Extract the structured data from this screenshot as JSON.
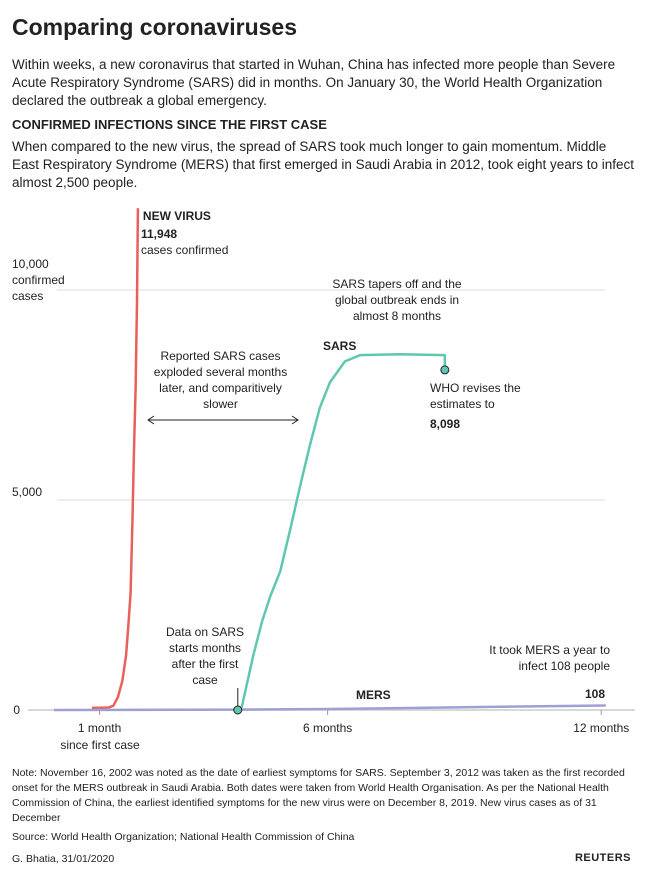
{
  "chart_data": {
    "type": "line",
    "title": "Comparing coronaviruses",
    "subtitle": "Within weeks, a new coronavirus that started in Wuhan, China has infected more people than Severe Acute Respiratory Syndrome (SARS) did in months. On January 30, the World Health Organization declared the outbreak a global emergency.",
    "chart_title": "CONFIRMED INFECTIONS SINCE THE FIRST CASE",
    "description": "When compared to the new virus, the spread of SARS took much longer to gain momentum. Middle East Respiratory Syndrome (MERS) that first emerged in Saudi Arabia in 2012, took eight years to infect almost 2,500 people.",
    "ylabel": "confirmed cases",
    "xlim": [
      0,
      12.74
    ],
    "ylim": [
      0,
      12000
    ],
    "xticks": [
      {
        "value": 1,
        "label": "1 month"
      },
      {
        "value": 6,
        "label": "6 months"
      },
      {
        "value": 12,
        "label": "12 months"
      }
    ],
    "yticks": [
      0,
      {
        "value": 5000,
        "label": "5,000"
      },
      {
        "value": 10000,
        "label": "10,000"
      }
    ],
    "grid": true,
    "series": [
      {
        "name": "NEW VIRUS",
        "color": "#e8605a",
        "x": [
          0.83,
          1.0,
          1.2,
          1.3,
          1.4,
          1.5,
          1.58,
          1.63,
          1.68,
          1.72,
          1.75,
          1.79,
          1.82,
          1.84
        ],
        "values": [
          50,
          55,
          60,
          100,
          300,
          700,
          1300,
          2000,
          2800,
          4500,
          6000,
          7700,
          9700,
          11948
        ]
      },
      {
        "name": "SARS",
        "color": "#5fc7b0",
        "x": [
          4.03,
          4.12,
          4.37,
          4.56,
          4.74,
          4.96,
          5.18,
          5.39,
          5.61,
          5.83,
          6.05,
          6.38,
          6.71,
          7.59,
          8.57,
          8.57
        ],
        "values": [
          0,
          80,
          1300,
          2100,
          2700,
          3300,
          4300,
          5300,
          6300,
          7200,
          7800,
          8300,
          8450,
          8470,
          8450,
          8098
        ]
      },
      {
        "name": "MERS",
        "color": "#9f9fd6",
        "x": [
          0,
          4,
          6,
          8,
          10,
          12.1
        ],
        "values": [
          0,
          10,
          25,
          50,
          80,
          108
        ]
      }
    ],
    "annotations": [
      "11,948",
      "cases confirmed",
      "SARS tapers off and the global outbreak ends in almost 8 months",
      "Reported SARS cases exploded several months later, and comparitively slower",
      "WHO revises the estimates to",
      "8,098",
      "Data on SARS starts months after the first case",
      "It took MERS a year to infect 108 people",
      "108",
      "since first case"
    ],
    "note": "Note: November 16, 2002 was noted as the date of earliest symptoms for SARS. September 3, 2012 was taken as the first recorded onset for the MERS outbreak in Saudi Arabia. Both dates were taken from World Health Organisation. As per the National Health Commission of China, the earliest identified symptoms for the new virus were on December 8, 2019. New virus cases as of 31 December",
    "source": "Source: World Health Organization; National Health Commission of China",
    "byline": "G. Bhatia, 31/01/2020",
    "logo": "REUTERS"
  }
}
